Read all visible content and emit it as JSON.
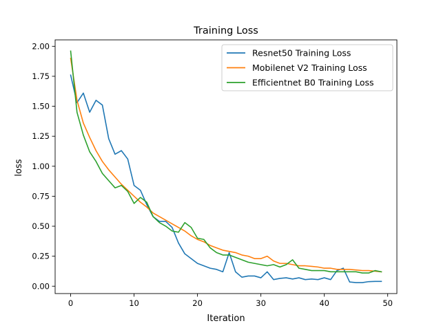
{
  "chart_data": {
    "type": "line",
    "title": "Training Loss",
    "xlabel": "Iteration",
    "ylabel": "loss",
    "xlim": [
      -2.45,
      51.45
    ],
    "ylim": [
      -0.0615,
      2.0535
    ],
    "x_ticks": [
      0,
      10,
      20,
      30,
      40,
      50
    ],
    "x_tick_labels": [
      "0",
      "10",
      "20",
      "30",
      "40",
      "50"
    ],
    "y_ticks": [
      0,
      0.25,
      0.5,
      0.75,
      1.0,
      1.25,
      1.5,
      1.75,
      2.0
    ],
    "y_tick_labels": [
      "0.00",
      "0.25",
      "0.50",
      "0.75",
      "1.00",
      "1.25",
      "1.50",
      "1.75",
      "2.00"
    ],
    "grid": false,
    "legend_position": "top-right",
    "series": [
      {
        "name": "Resnet50 Training Loss",
        "color": "#1f77b4",
        "x": [
          0,
          1,
          2,
          3,
          4,
          5,
          6,
          7,
          8,
          9,
          10,
          11,
          12,
          13,
          14,
          15,
          16,
          17,
          18,
          19,
          20,
          21,
          22,
          23,
          24,
          25,
          26,
          27,
          28,
          29,
          30,
          31,
          32,
          33,
          34,
          35,
          36,
          37,
          38,
          39,
          40,
          41,
          42,
          43,
          44,
          45,
          46,
          47,
          48,
          49
        ],
        "values": [
          1.76,
          1.53,
          1.61,
          1.45,
          1.55,
          1.51,
          1.23,
          1.1,
          1.13,
          1.06,
          0.84,
          0.8,
          0.68,
          0.58,
          0.54,
          0.54,
          0.49,
          0.36,
          0.27,
          0.23,
          0.19,
          0.17,
          0.15,
          0.14,
          0.12,
          0.28,
          0.12,
          0.075,
          0.085,
          0.085,
          0.07,
          0.12,
          0.055,
          0.065,
          0.07,
          0.06,
          0.07,
          0.055,
          0.06,
          0.055,
          0.07,
          0.055,
          0.13,
          0.15,
          0.035,
          0.03,
          0.03,
          0.038,
          0.04,
          0.04
        ]
      },
      {
        "name": "Mobilenet V2 Training Loss",
        "color": "#ff7f0e",
        "x": [
          0,
          1,
          2,
          3,
          4,
          5,
          6,
          7,
          8,
          9,
          10,
          11,
          12,
          13,
          14,
          15,
          16,
          17,
          18,
          19,
          20,
          21,
          22,
          23,
          24,
          25,
          26,
          27,
          28,
          29,
          30,
          31,
          32,
          33,
          34,
          35,
          36,
          37,
          38,
          39,
          40,
          41,
          42,
          43,
          44,
          45,
          46,
          47,
          48,
          49
        ],
        "values": [
          1.9,
          1.55,
          1.36,
          1.24,
          1.13,
          1.04,
          0.97,
          0.91,
          0.85,
          0.8,
          0.75,
          0.7,
          0.66,
          0.61,
          0.58,
          0.55,
          0.52,
          0.49,
          0.46,
          0.42,
          0.39,
          0.37,
          0.34,
          0.32,
          0.3,
          0.29,
          0.28,
          0.26,
          0.25,
          0.23,
          0.23,
          0.25,
          0.21,
          0.19,
          0.19,
          0.18,
          0.17,
          0.17,
          0.165,
          0.16,
          0.15,
          0.15,
          0.14,
          0.14,
          0.14,
          0.135,
          0.13,
          0.13,
          0.125,
          0.12
        ]
      },
      {
        "name": "Efficientnet B0 Training Loss",
        "color": "#2ca02c",
        "x": [
          0,
          1,
          2,
          3,
          4,
          5,
          6,
          7,
          8,
          9,
          10,
          11,
          12,
          13,
          14,
          15,
          16,
          17,
          18,
          19,
          20,
          21,
          22,
          23,
          24,
          25,
          26,
          27,
          28,
          29,
          30,
          31,
          32,
          33,
          34,
          35,
          36,
          37,
          38,
          39,
          40,
          41,
          42,
          43,
          44,
          45,
          46,
          47,
          48,
          49
        ],
        "values": [
          1.96,
          1.45,
          1.26,
          1.12,
          1.04,
          0.94,
          0.88,
          0.82,
          0.84,
          0.79,
          0.69,
          0.74,
          0.7,
          0.58,
          0.53,
          0.5,
          0.46,
          0.45,
          0.53,
          0.49,
          0.4,
          0.39,
          0.32,
          0.28,
          0.26,
          0.26,
          0.24,
          0.22,
          0.2,
          0.19,
          0.18,
          0.17,
          0.18,
          0.16,
          0.18,
          0.22,
          0.15,
          0.14,
          0.13,
          0.13,
          0.13,
          0.12,
          0.12,
          0.12,
          0.12,
          0.12,
          0.11,
          0.11,
          0.13,
          0.12
        ]
      }
    ]
  }
}
